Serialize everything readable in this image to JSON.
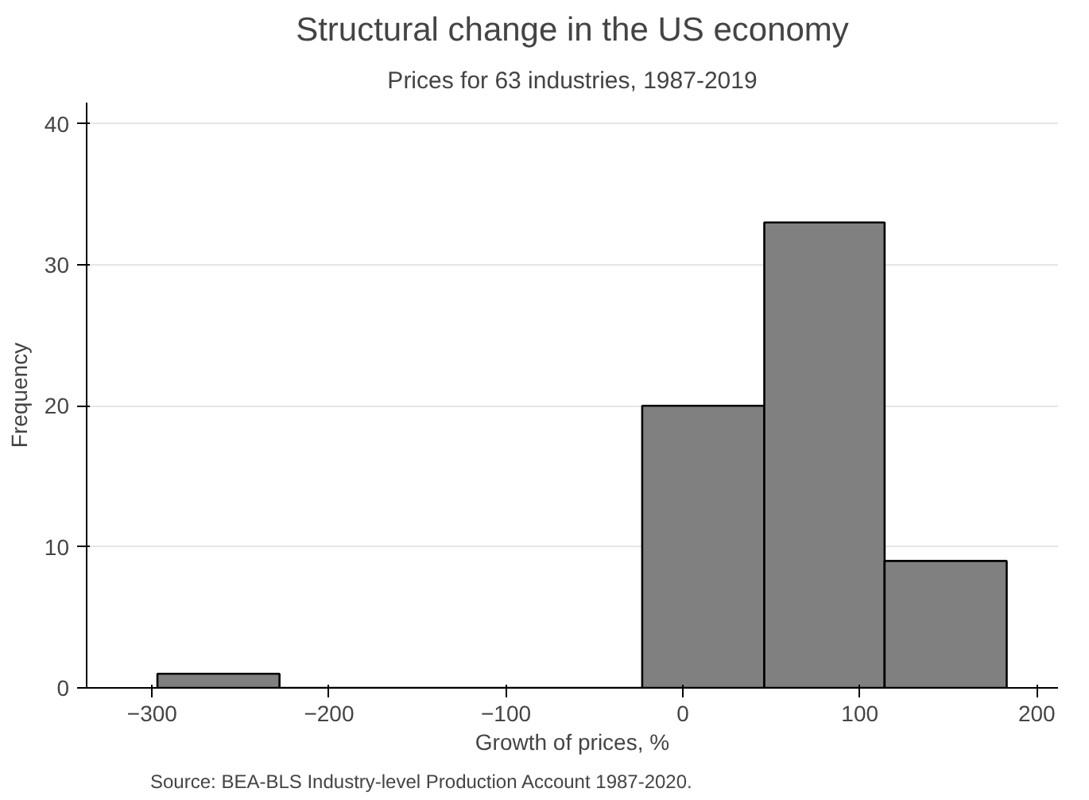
{
  "chart_data": {
    "type": "histogram",
    "title": "Structural change in the US economy",
    "subtitle": "Prices for 63 industries, 1987-2019",
    "xlabel": "Growth of prices, %",
    "ylabel": "Frequency",
    "bins": [
      -297,
      -228,
      -23,
      46,
      114,
      183
    ],
    "values": [
      1,
      0,
      20,
      33,
      9
    ],
    "color": "#808080",
    "xlim": [
      -337,
      212
    ],
    "xticks": [
      -300,
      -200,
      -100,
      0,
      100,
      200
    ],
    "ylim": [
      0,
      41.5
    ],
    "yticks": [
      0,
      10,
      20,
      30,
      40
    ],
    "grid": "y",
    "annotations": [
      "Source: BEA-BLS Industry-level Production Account 1987-2020."
    ]
  }
}
